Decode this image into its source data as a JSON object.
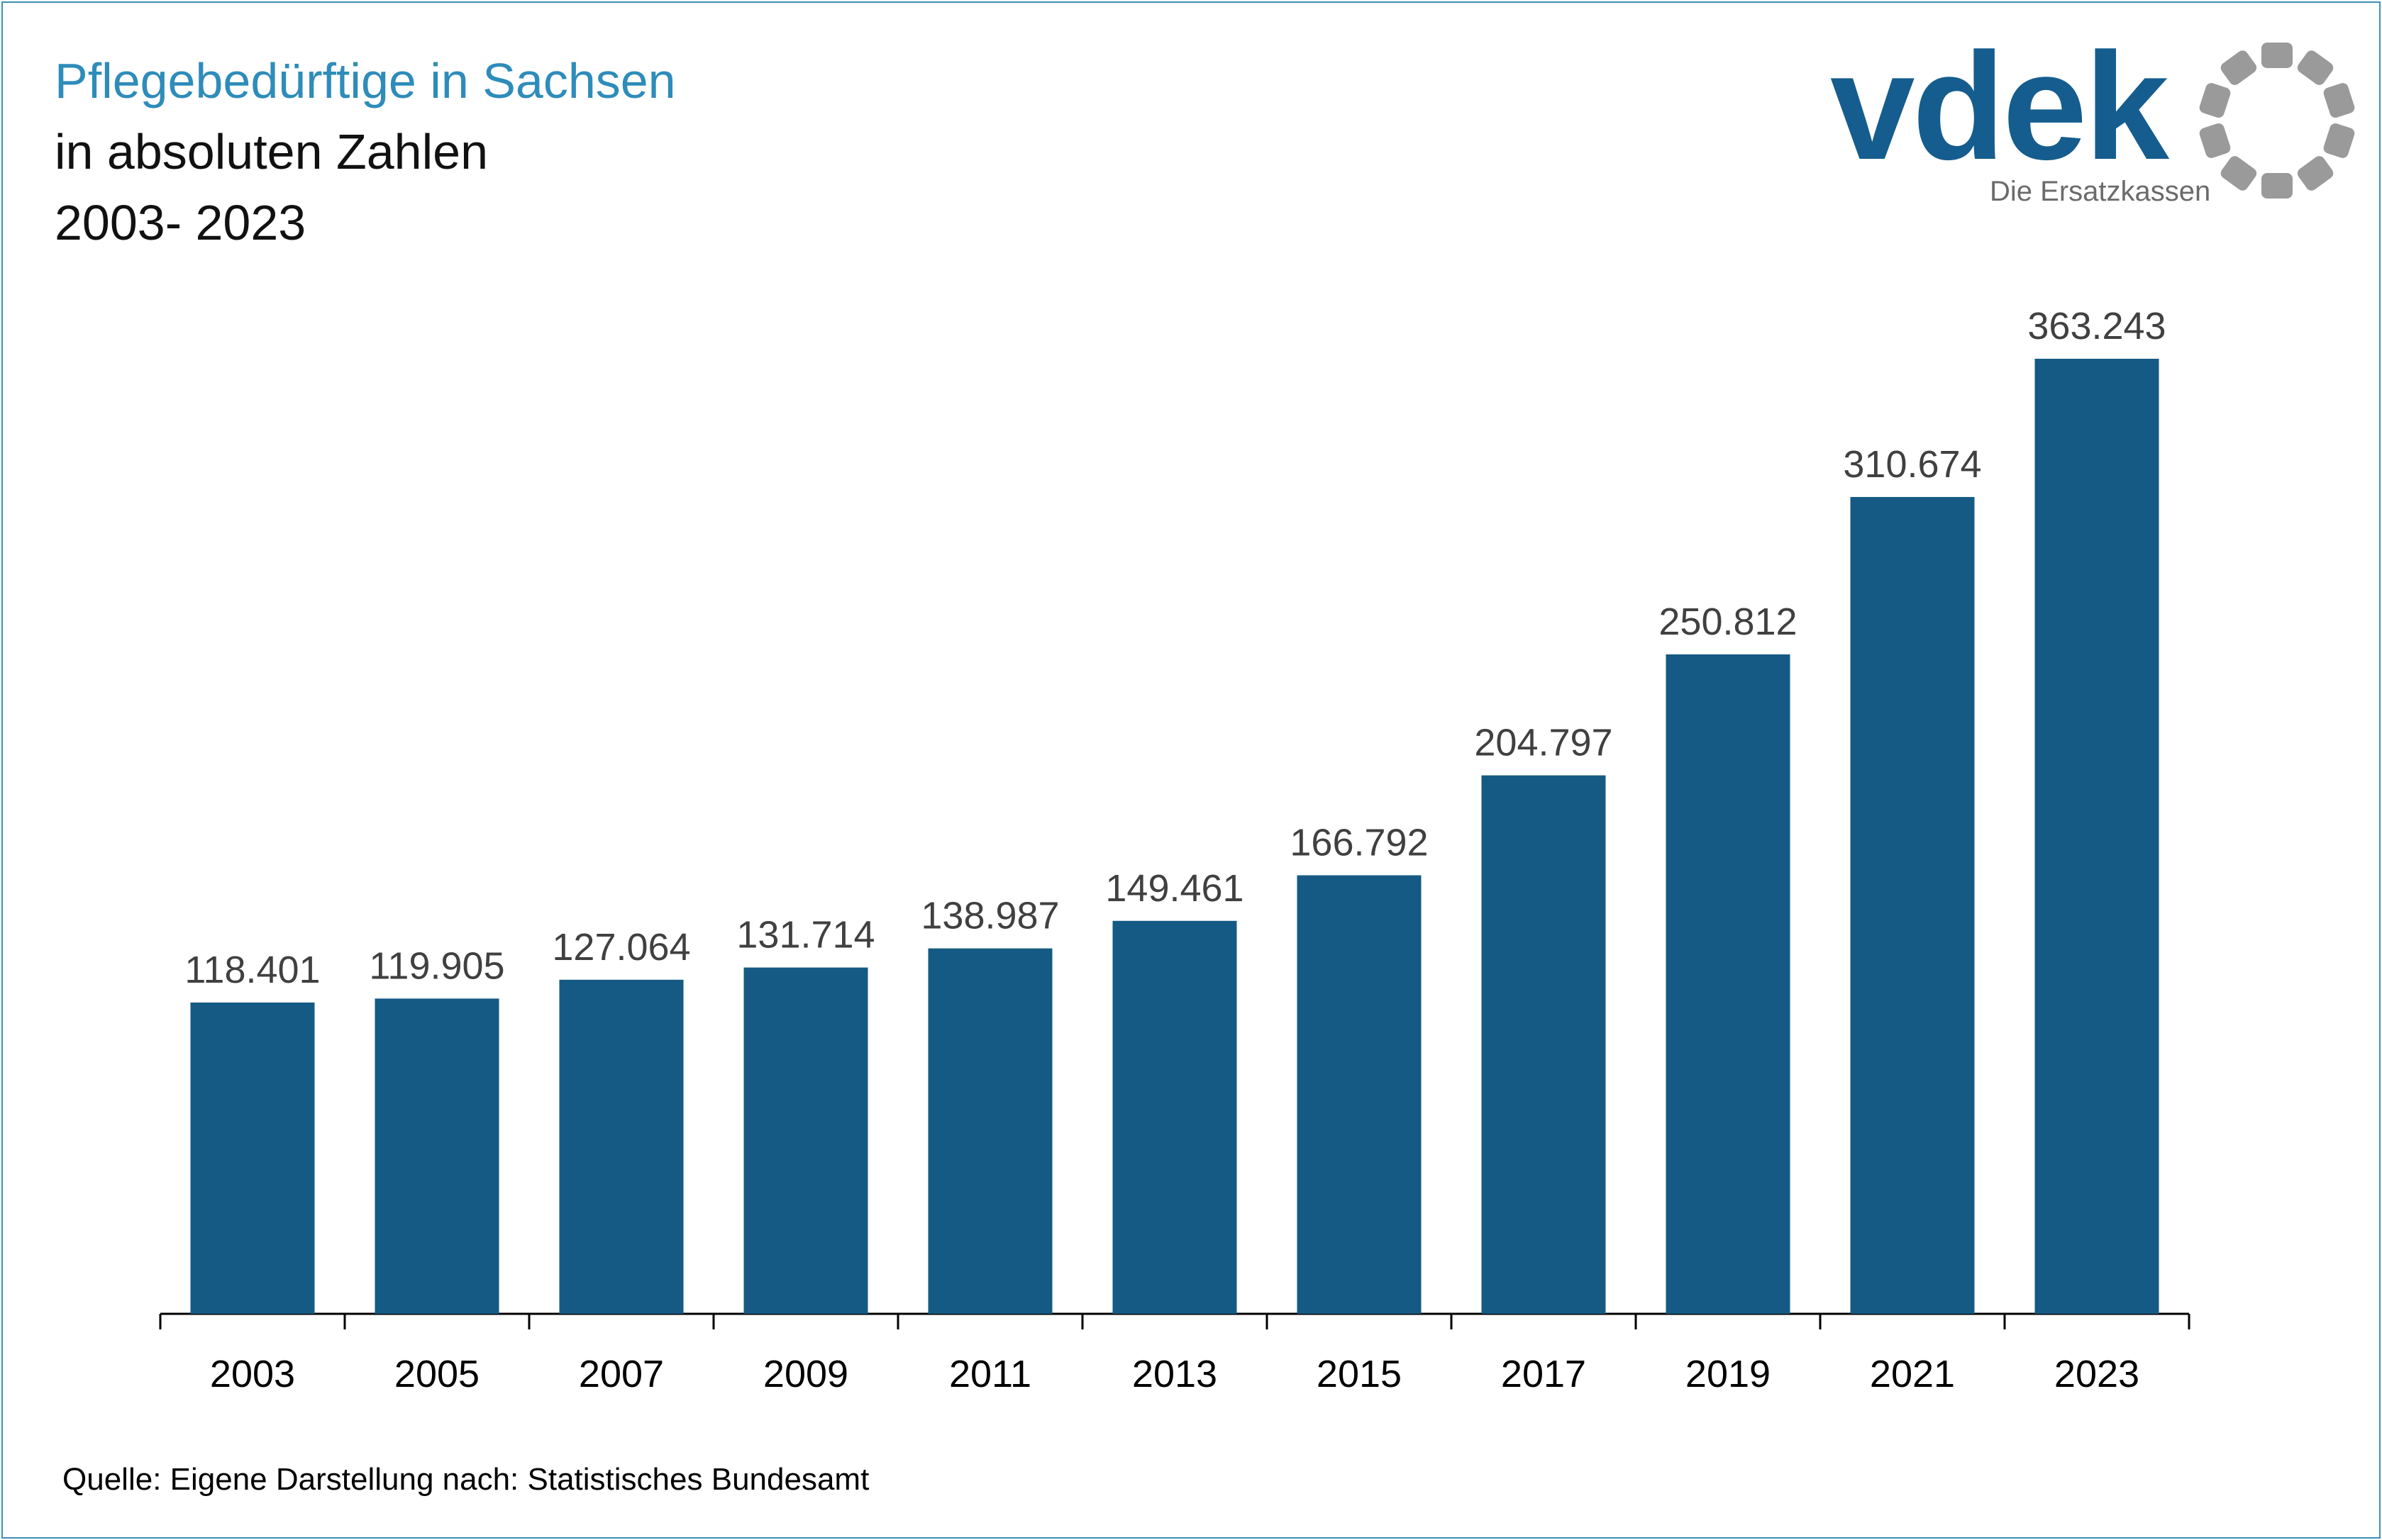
{
  "header": {
    "title": "Pflegebedürftige in Sachsen",
    "subtitle": "in absoluten Zahlen",
    "years": "2003- 2023"
  },
  "logo": {
    "wordmark": "vdek",
    "tagline": "Die Ersatzkassen",
    "colors": {
      "wordmark": "#155d8e",
      "ring": "#9a9a9a"
    }
  },
  "source": "Quelle: Eigene Darstellung nach: Statistisches Bundesamt",
  "chart_data": {
    "type": "bar",
    "categories": [
      "2003",
      "2005",
      "2007",
      "2009",
      "2011",
      "2013",
      "2015",
      "2017",
      "2019",
      "2021",
      "2023"
    ],
    "values": [
      118401,
      119905,
      127064,
      131714,
      138987,
      149461,
      166792,
      204797,
      250812,
      310674,
      363243
    ],
    "value_labels": [
      "118.401",
      "119.905",
      "127.064",
      "131.714",
      "138.987",
      "149.461",
      "166.792",
      "204.797",
      "250.812",
      "310.674",
      "363.243"
    ],
    "ylim": [
      0,
      400000
    ],
    "grid": false,
    "bar_color": "#155a84"
  }
}
